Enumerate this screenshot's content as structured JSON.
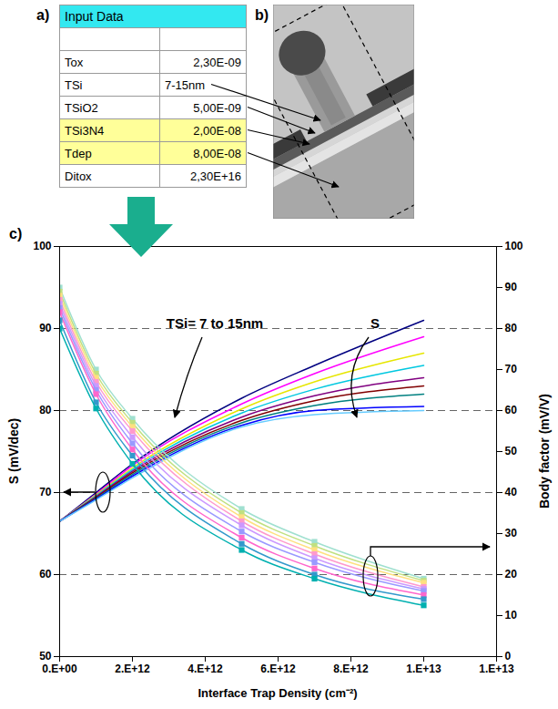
{
  "panel_labels": [
    "a)",
    "b)",
    "c)"
  ],
  "table": {
    "header": "Input Data",
    "rows": [
      [
        "Tox",
        "2,30E-09"
      ],
      [
        "TSi",
        "7-15nm"
      ],
      [
        "TSiO2",
        "5,00E-09"
      ],
      [
        "TSi3N4",
        "2,00E-08"
      ],
      [
        "Tdep",
        "8,00E-08"
      ],
      [
        "Ditox",
        "2,30E+16"
      ]
    ]
  },
  "chart_data": {
    "type": "line",
    "x_label": "Interface Trap Density (cm⁻²)",
    "y_label": "S (mV/dec)",
    "y2_label": "Body factor (mV/V)",
    "annotations": [
      "TSi= 7 to 15nm",
      "S"
    ],
    "x": [
      0,
      1000000000000.0,
      2000000000000.0,
      5000000000000.0,
      7000000000000.0,
      10000000000000.0
    ],
    "xlim": [
      0,
      12000000000000.0
    ],
    "xticks": [
      {
        "value": 0,
        "label": "0.E+00"
      },
      {
        "value": 2000000000000.0,
        "label": "2.E+12"
      },
      {
        "value": 4000000000000.0,
        "label": "4.E+12"
      },
      {
        "value": 6000000000000.0,
        "label": "6.E+12"
      },
      {
        "value": 8000000000000.0,
        "label": "8.E+12"
      },
      {
        "value": 10000000000000.0,
        "label": "1.E+13"
      },
      {
        "value": 12000000000000.0,
        "label": "1.E+13"
      }
    ],
    "ylim": [
      50,
      100
    ],
    "yticks": [
      50,
      60,
      70,
      80,
      90,
      100
    ],
    "y2lim": [
      0,
      100
    ],
    "y2ticks": [
      0,
      10,
      20,
      30,
      40,
      50,
      60,
      70,
      80,
      90,
      100
    ],
    "grid": true,
    "series": [
      {
        "color": "#000080",
        "values": [
          66.5,
          70,
          73.5,
          81.5,
          85.5,
          91
        ]
      },
      {
        "color": "#ff00ff",
        "values": [
          66.5,
          69.8,
          73.3,
          80.8,
          84.5,
          89
        ]
      },
      {
        "color": "#e6e600",
        "values": [
          66.5,
          69.7,
          73,
          80.2,
          83.5,
          87
        ]
      },
      {
        "color": "#00c8e0",
        "values": [
          66.5,
          69.6,
          72.8,
          79.7,
          82.6,
          85.5
        ]
      },
      {
        "color": "#800080",
        "values": [
          66.5,
          69.5,
          72.6,
          79.2,
          81.8,
          84
        ]
      },
      {
        "color": "#800000",
        "values": [
          66.5,
          69.4,
          72.4,
          78.8,
          81.2,
          83
        ]
      },
      {
        "color": "#008080",
        "values": [
          66.5,
          69.3,
          72.2,
          78.5,
          80.6,
          82
        ]
      },
      {
        "color": "#0000ff",
        "values": [
          66.5,
          69.2,
          72,
          78.2,
          80,
          80.5
        ]
      },
      {
        "color": "#66ccff",
        "values": [
          66.5,
          69.1,
          71.8,
          78,
          79.5,
          80
        ]
      },
      {
        "color": "#a0e0d0",
        "values": [
          90,
          70,
          58,
          36,
          28,
          19
        ],
        "axis": "y2",
        "marker": "square"
      },
      {
        "color": "#c0e080",
        "values": [
          89,
          69,
          57,
          35,
          27,
          18.5
        ],
        "axis": "y2",
        "marker": "square"
      },
      {
        "color": "#ffe080",
        "values": [
          88,
          68,
          56,
          34,
          26,
          18
        ],
        "axis": "y2",
        "marker": "square"
      },
      {
        "color": "#ff99cc",
        "values": [
          87,
          67,
          55,
          33,
          25,
          17
        ],
        "axis": "y2",
        "marker": "square"
      },
      {
        "color": "#cc99ff",
        "values": [
          86,
          66,
          53.5,
          32,
          24,
          16.5
        ],
        "axis": "y2",
        "marker": "square"
      },
      {
        "color": "#9999ff",
        "values": [
          85,
          65,
          52,
          30.5,
          23,
          16
        ],
        "axis": "y2",
        "marker": "square"
      },
      {
        "color": "#ff66cc",
        "values": [
          84,
          64,
          50.5,
          29,
          21.5,
          15
        ],
        "axis": "y2",
        "marker": "square"
      },
      {
        "color": "#3399cc",
        "values": [
          82,
          62,
          49,
          27.5,
          20,
          14
        ],
        "axis": "y2",
        "marker": "square"
      },
      {
        "color": "#00b0b0",
        "values": [
          80,
          60.5,
          47,
          26,
          19,
          12.5
        ],
        "axis": "y2",
        "marker": "square"
      }
    ]
  }
}
